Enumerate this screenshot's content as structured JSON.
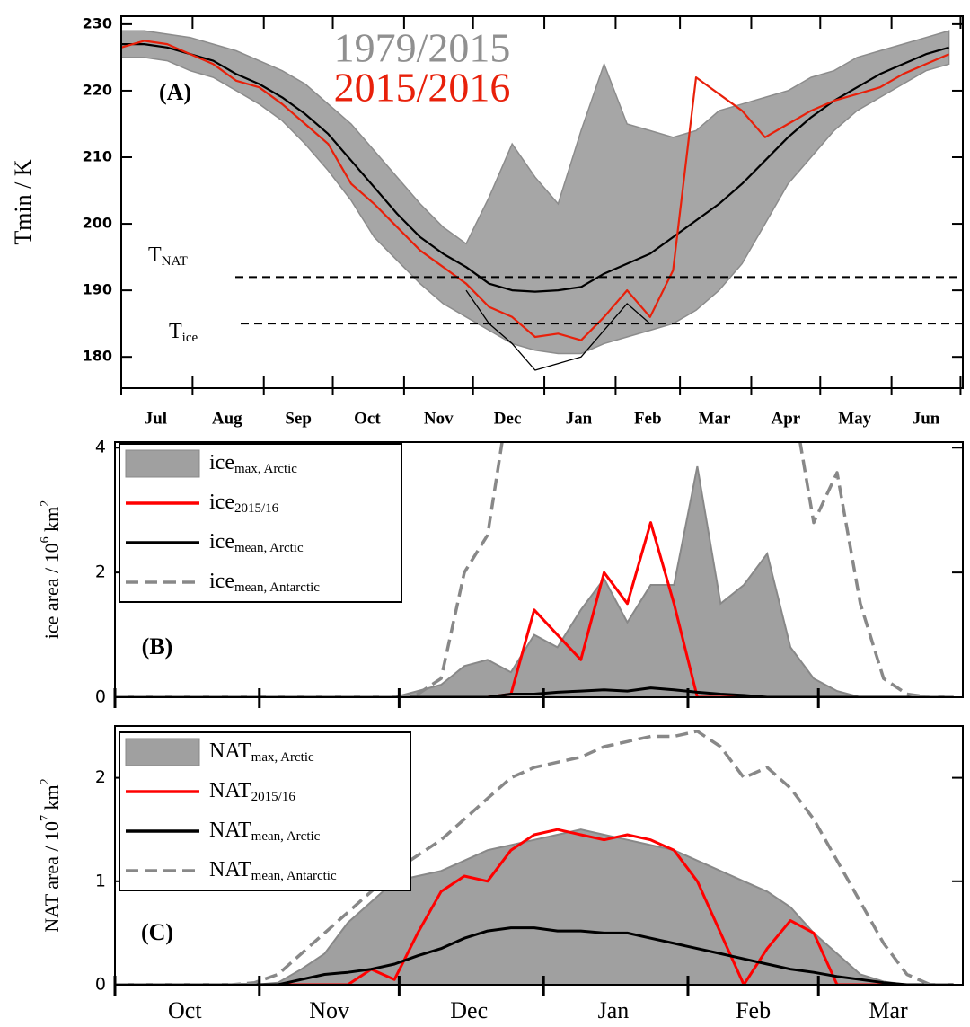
{
  "chart_data": [
    {
      "type": "line",
      "panel": "(A)",
      "ylabel": "Tmin / K",
      "legend": "text",
      "xlim": [
        0,
        366
      ],
      "ylim": [
        175.3,
        231.2
      ],
      "yticks": [
        180,
        190,
        200,
        210,
        220,
        230
      ],
      "xticks": [
        0,
        31,
        62,
        92,
        123,
        153,
        184,
        215,
        243,
        274,
        304,
        335,
        365
      ],
      "xlabels": [
        {
          "value": 15,
          "label": "Jul"
        },
        {
          "value": 46,
          "label": "Aug"
        },
        {
          "value": 77,
          "label": "Sep"
        },
        {
          "value": 107,
          "label": "Oct"
        },
        {
          "value": 138,
          "label": "Nov"
        },
        {
          "value": 168,
          "label": "Dec"
        },
        {
          "value": 199,
          "label": "Jan"
        },
        {
          "value": 229,
          "label": "Feb"
        },
        {
          "value": 258,
          "label": "Mar"
        },
        {
          "value": 289,
          "label": "Apr"
        },
        {
          "value": 319,
          "label": "May"
        },
        {
          "value": 350,
          "label": "Jun"
        }
      ],
      "x": [
        0,
        10,
        20,
        30,
        40,
        50,
        60,
        70,
        80,
        90,
        100,
        110,
        120,
        130,
        140,
        150,
        160,
        170,
        180,
        190,
        200,
        210,
        220,
        230,
        240,
        250,
        260,
        270,
        280,
        290,
        300,
        310,
        320,
        330,
        340,
        350,
        360
      ],
      "series": [
        {
          "name": "1979/2015",
          "color": "#a6a6a6",
          "style": "band",
          "values": [
            229,
            229,
            228.5,
            228,
            227,
            226,
            224.5,
            223,
            221,
            218,
            215,
            211,
            207,
            203,
            199.5,
            197,
            204,
            212,
            207,
            203,
            214,
            224,
            215,
            214,
            213,
            214,
            217,
            218,
            219,
            220,
            222,
            223,
            225,
            226,
            227,
            228,
            229
          ],
          "lower": [
            225,
            225,
            224.5,
            223,
            222,
            220,
            218,
            215.5,
            212,
            208,
            203.5,
            198,
            194.5,
            191,
            188,
            186,
            184,
            182,
            181,
            180.5,
            180.5,
            182,
            183,
            184,
            185,
            187,
            190,
            194,
            200,
            206,
            210,
            214,
            217,
            219,
            221,
            223,
            224
          ]
        },
        {
          "color": "#000000",
          "values": [
            227,
            227,
            226.5,
            225.5,
            224.5,
            222.5,
            221,
            219,
            216.5,
            213.5,
            209.5,
            205.5,
            201.5,
            198,
            195.5,
            193.5,
            191,
            190,
            189.8,
            190,
            190.5,
            192.5,
            194,
            195.5,
            198,
            200.5,
            203,
            206,
            209.5,
            213,
            216,
            218.5,
            220.5,
            222.5,
            224,
            225.5,
            226.5
          ]
        },
        {
          "color": "#000000",
          "style": "thin",
          "values": [
            null,
            null,
            null,
            null,
            null,
            null,
            null,
            null,
            null,
            null,
            null,
            null,
            null,
            null,
            null,
            190,
            185,
            182,
            178,
            179,
            180,
            184,
            188,
            185,
            null,
            null,
            null,
            null,
            null,
            null,
            null,
            null,
            null,
            null,
            null,
            null,
            null
          ]
        },
        {
          "name": "2015/2016",
          "color": "#e8200a",
          "values": [
            226.5,
            227.5,
            227,
            225.5,
            224,
            221.5,
            220.5,
            218,
            215,
            212,
            206,
            203,
            199.5,
            196,
            193.5,
            191,
            187.5,
            186,
            183,
            183.5,
            182.5,
            186,
            190,
            186,
            193,
            222,
            219.5,
            217,
            213,
            215,
            217,
            218.5,
            219.5,
            220.5,
            222.5,
            224,
            225.5
          ]
        }
      ],
      "reference_lines": [
        {
          "value": 192,
          "label": "T",
          "subscript": "NAT"
        },
        {
          "value": 185,
          "label": "T",
          "subscript": "ice"
        }
      ]
    },
    {
      "type": "line",
      "panel": "(B)",
      "legend": "box",
      "ylabel": [
        {
          "text": "ice area / 10"
        },
        {
          "text": "6",
          "sup": true
        },
        {
          "text": " km"
        },
        {
          "text": "2",
          "sup": true
        }
      ],
      "xlim": [
        0,
        182
      ],
      "ylim": [
        0,
        4.09
      ],
      "yticks": [
        0,
        2,
        4
      ],
      "xticks": [
        0,
        31,
        61,
        92,
        123,
        151
      ],
      "x": [
        0,
        5,
        10,
        15,
        20,
        25,
        30,
        35,
        40,
        45,
        50,
        55,
        60,
        65,
        70,
        75,
        80,
        85,
        90,
        95,
        100,
        105,
        110,
        115,
        120,
        125,
        130,
        135,
        140,
        145,
        150,
        155,
        160,
        165,
        170,
        175,
        180
      ],
      "series": [
        {
          "name": "ice",
          "subscript": "max, Arctic",
          "color": "#a0a0a0",
          "style": "area",
          "values": [
            0,
            0,
            0,
            0,
            0,
            0,
            0,
            0,
            0,
            0,
            0,
            0,
            0,
            0.1,
            0.2,
            0.5,
            0.6,
            0.4,
            1.0,
            0.8,
            1.4,
            1.9,
            1.2,
            1.8,
            1.8,
            3.7,
            1.5,
            1.8,
            2.3,
            0.8,
            0.3,
            0.1,
            0,
            0,
            0,
            0,
            0
          ]
        },
        {
          "name": "ice",
          "subscript": "2015/16",
          "color": "#ff0000",
          "values": [
            0,
            0,
            0,
            0,
            0,
            0,
            0,
            0,
            0,
            0,
            0,
            0,
            0,
            0,
            0,
            0,
            0,
            0.05,
            1.4,
            1.0,
            0.6,
            2.0,
            1.5,
            2.8,
            1.5,
            0,
            0,
            0,
            0,
            0,
            0,
            0,
            0,
            0,
            0,
            0,
            0
          ]
        },
        {
          "name": "ice",
          "subscript": "mean, Arctic",
          "color": "#000000",
          "values": [
            0,
            0,
            0,
            0,
            0,
            0,
            0,
            0,
            0,
            0,
            0,
            0,
            0,
            0,
            0,
            0,
            0,
            0.05,
            0.05,
            0.08,
            0.1,
            0.12,
            0.1,
            0.15,
            0.12,
            0.08,
            0.05,
            0.03,
            0,
            0,
            0,
            0,
            0,
            0,
            0,
            0,
            0
          ]
        },
        {
          "name": "ice",
          "subscript": "mean, Antarctic",
          "color": "#888888",
          "style": "dashed",
          "values": [
            0,
            0,
            0,
            0,
            0,
            0,
            0,
            0,
            0,
            0,
            0,
            0,
            0,
            0.05,
            0.3,
            2.0,
            2.6,
            5,
            null,
            null,
            null,
            null,
            null,
            null,
            null,
            null,
            null,
            null,
            null,
            5,
            2.8,
            3.6,
            1.5,
            0.3,
            0.05,
            0,
            0
          ]
        }
      ]
    },
    {
      "type": "line",
      "panel": "(C)",
      "legend": "box",
      "ylabel": [
        {
          "text": "NAT area / 10"
        },
        {
          "text": "7",
          "sup": true
        },
        {
          "text": " km"
        },
        {
          "text": "2",
          "sup": true
        }
      ],
      "xlim": [
        0,
        182
      ],
      "ylim": [
        0,
        2.5
      ],
      "yticks": [
        0,
        1,
        2
      ],
      "xticks": [
        0,
        31,
        61,
        92,
        123,
        151
      ],
      "xlabels": [
        {
          "value": 15,
          "label": "Oct"
        },
        {
          "value": 46,
          "label": "Nov"
        },
        {
          "value": 76,
          "label": "Dec"
        },
        {
          "value": 107,
          "label": "Jan"
        },
        {
          "value": 137,
          "label": "Feb"
        },
        {
          "value": 166,
          "label": "Mar"
        }
      ],
      "x": [
        0,
        5,
        10,
        15,
        20,
        25,
        30,
        35,
        40,
        45,
        50,
        55,
        60,
        65,
        70,
        75,
        80,
        85,
        90,
        95,
        100,
        105,
        110,
        115,
        120,
        125,
        130,
        135,
        140,
        145,
        150,
        155,
        160,
        165,
        170,
        175,
        180
      ],
      "series": [
        {
          "name": "NAT",
          "subscript": "max, Arctic",
          "color": "#a0a0a0",
          "style": "area",
          "values": [
            0,
            0,
            0,
            0,
            0,
            0,
            0,
            0.02,
            0.15,
            0.3,
            0.6,
            0.8,
            1.0,
            1.05,
            1.1,
            1.2,
            1.3,
            1.35,
            1.4,
            1.45,
            1.5,
            1.45,
            1.4,
            1.35,
            1.3,
            1.2,
            1.1,
            1.0,
            0.9,
            0.75,
            0.5,
            0.3,
            0.1,
            0.03,
            0,
            0,
            0
          ]
        },
        {
          "name": "NAT",
          "subscript": "2015/16",
          "color": "#ff0000",
          "values": [
            0,
            0,
            0,
            0,
            0,
            0,
            0,
            0,
            0,
            0,
            0,
            0.15,
            0.05,
            0.5,
            0.9,
            1.05,
            1.0,
            1.3,
            1.45,
            1.5,
            1.45,
            1.4,
            1.45,
            1.4,
            1.3,
            1.0,
            0.5,
            0,
            0.35,
            0.62,
            0.5,
            0,
            0,
            0,
            0,
            0,
            0
          ]
        },
        {
          "name": "NAT",
          "subscript": "mean, Arctic",
          "color": "#000000",
          "values": [
            0,
            0,
            0,
            0,
            0,
            0,
            0,
            0,
            0.05,
            0.1,
            0.12,
            0.15,
            0.2,
            0.28,
            0.35,
            0.45,
            0.52,
            0.55,
            0.55,
            0.52,
            0.52,
            0.5,
            0.5,
            0.45,
            0.4,
            0.35,
            0.3,
            0.25,
            0.2,
            0.15,
            0.12,
            0.08,
            0.05,
            0.02,
            0,
            0,
            0
          ]
        },
        {
          "name": "NAT",
          "subscript": "mean, Antarctic",
          "color": "#888888",
          "style": "dashed",
          "values": [
            0,
            0,
            0,
            0,
            0,
            0,
            0.02,
            0.1,
            0.3,
            0.5,
            0.7,
            0.9,
            1.1,
            1.25,
            1.4,
            1.6,
            1.8,
            2.0,
            2.1,
            2.15,
            2.2,
            2.3,
            2.35,
            2.4,
            2.4,
            2.45,
            2.3,
            2.0,
            2.1,
            1.9,
            1.6,
            1.2,
            0.8,
            0.4,
            0.1,
            0,
            0
          ]
        }
      ]
    }
  ]
}
